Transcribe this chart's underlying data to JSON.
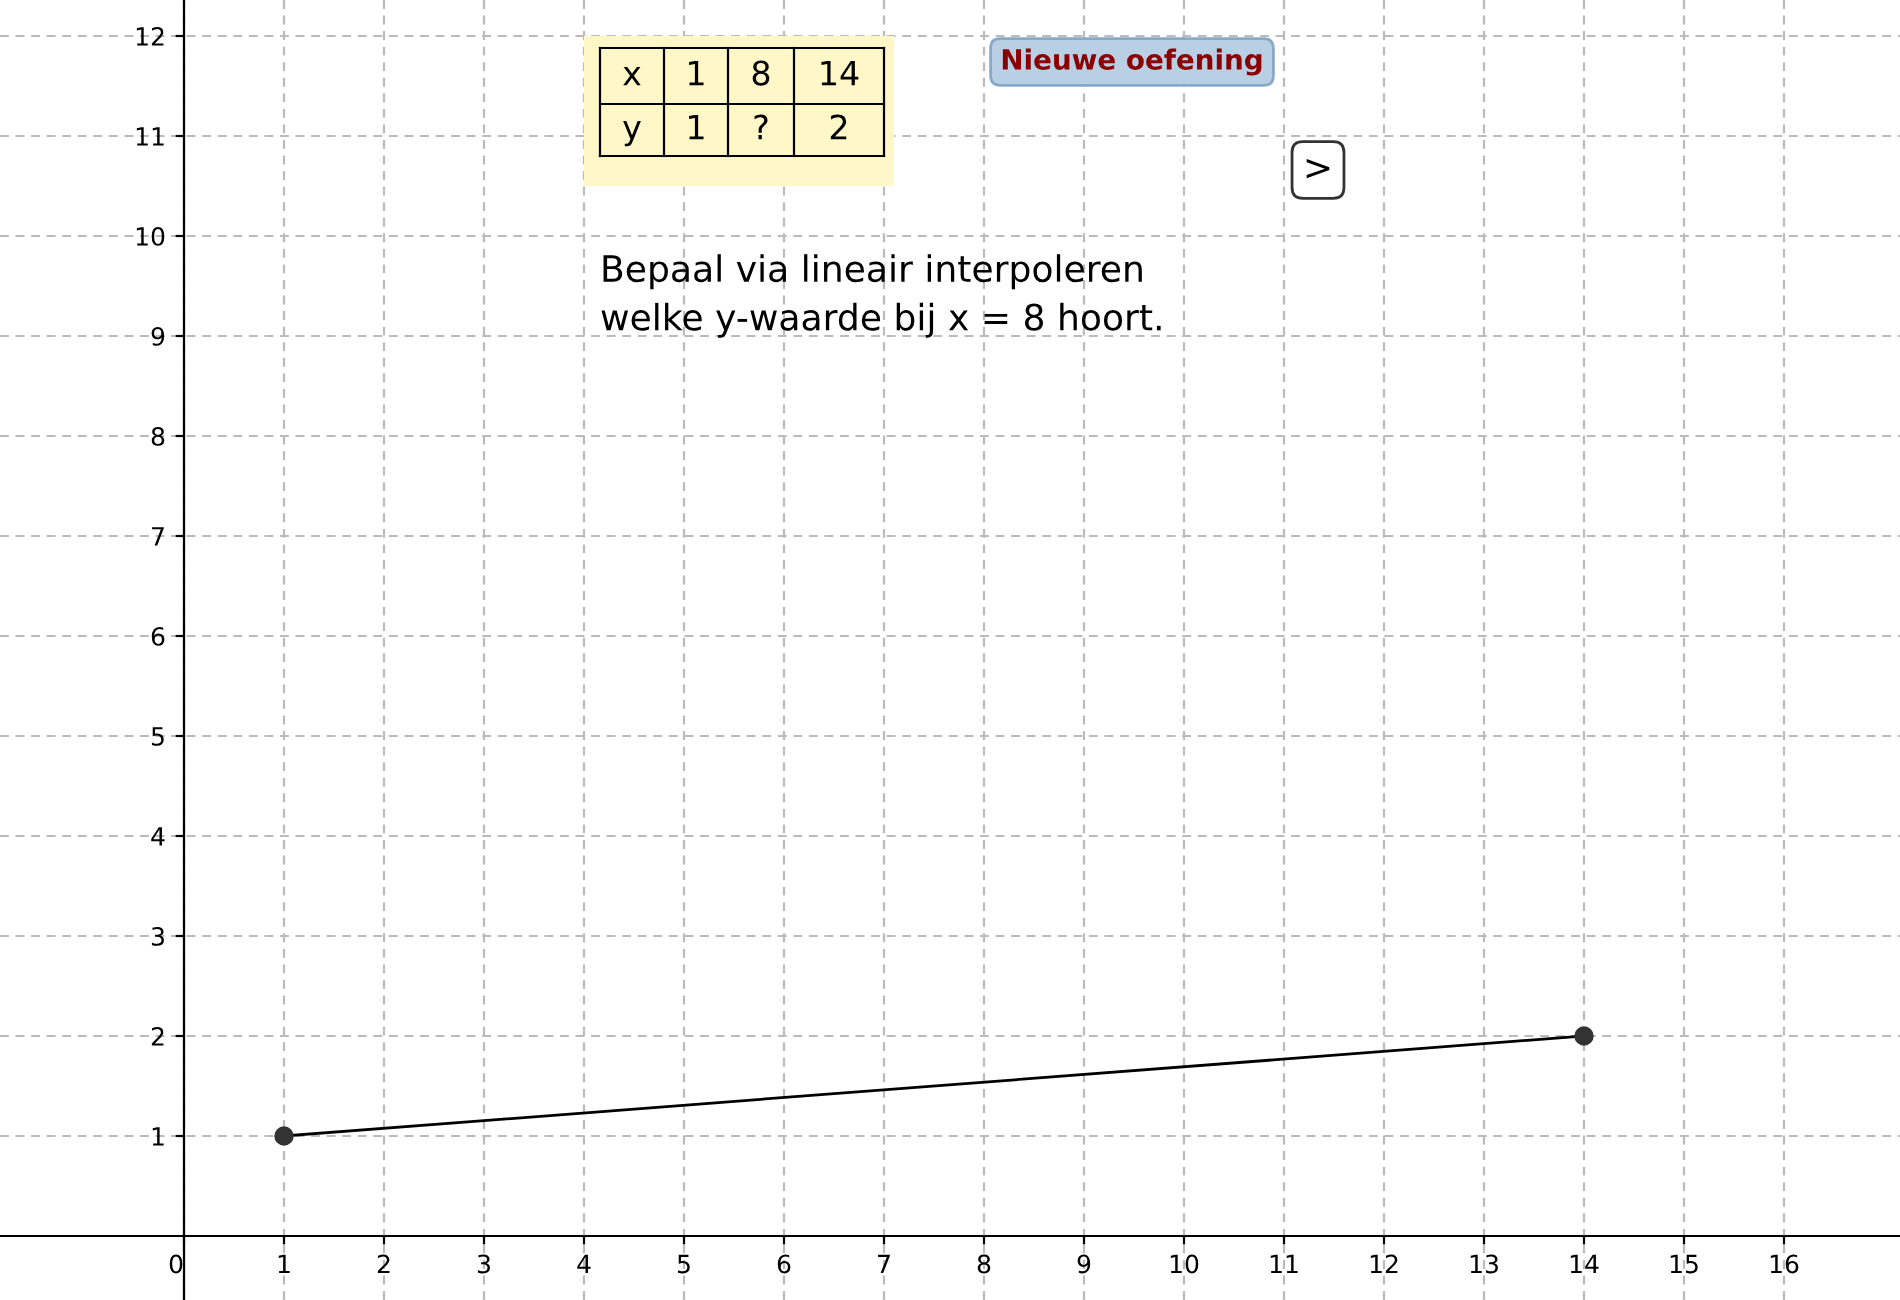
{
  "chart_data": {
    "type": "line",
    "x": [
      1,
      14
    ],
    "series": [
      {
        "color": "#333333",
        "values": [
          1,
          2
        ]
      }
    ],
    "xlim": [
      -1.84,
      17.16
    ],
    "ylim": [
      -0.64,
      12.36
    ],
    "xticks": [
      0,
      1,
      2,
      3,
      4,
      5,
      6,
      7,
      8,
      9,
      10,
      11,
      12,
      13,
      14,
      15,
      16
    ],
    "yticks": [
      1,
      2,
      3,
      4,
      5,
      6,
      7,
      8,
      9,
      10,
      11,
      12
    ],
    "grid": true,
    "marker": "circle",
    "line_style": "solid",
    "annotations": [
      "x",
      "1",
      "8",
      "14",
      "y",
      "1",
      "?",
      "2",
      "Bepaal via lineair interpoleren\nwelke y-waarde bij x = 8 hoort.",
      "Nieuwe oefening",
      ">"
    ]
  }
}
